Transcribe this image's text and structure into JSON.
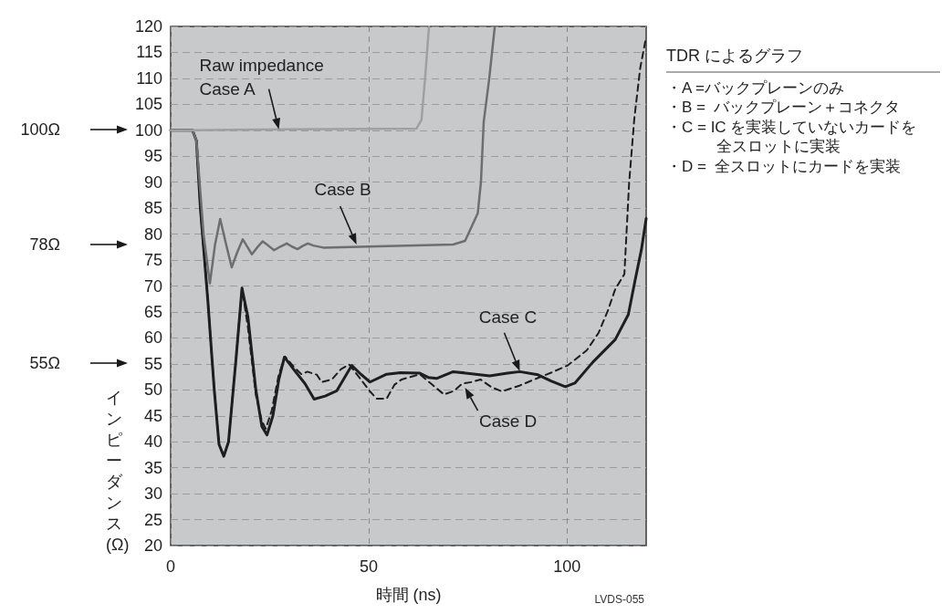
{
  "chart_data": {
    "type": "line",
    "xlabel": "時間 (ns)",
    "ylabel": "インピーダンス (Ω)",
    "xlim": [
      0,
      120
    ],
    "xticks": [
      0,
      50,
      100
    ],
    "ylim": [
      20,
      120
    ],
    "yticks": [
      20,
      25,
      30,
      35,
      40,
      45,
      50,
      55,
      60,
      65,
      70,
      75,
      80,
      85,
      90,
      95,
      100,
      105,
      110,
      115,
      120
    ],
    "grid": true,
    "marker": "none",
    "line_style": "solid",
    "series": [
      {
        "color": "#a0a0a0",
        "x": [
          0,
          6,
          30,
          62,
          63.3,
          64.2,
          65.2
        ],
        "values": [
          100,
          100,
          100.2,
          100.3,
          102,
          110,
          120
        ]
      },
      {
        "color": "#6e6e6e",
        "x": [
          0,
          5.5,
          6.5,
          8.3,
          9.9,
          11.2,
          12.5,
          14,
          15.4,
          16.8,
          18.2,
          19.4,
          20.5,
          21.8,
          23.2,
          24.6,
          26.1,
          27.7,
          29.3,
          30.6,
          32,
          33.3,
          34.6,
          36,
          38.5,
          50,
          71.3,
          74.3,
          77.5,
          78.3,
          79,
          80.4,
          81.8
        ],
        "values": [
          100,
          100,
          98,
          80,
          70.5,
          78,
          82.9,
          78,
          73.6,
          76.5,
          79,
          77.5,
          76.1,
          77.4,
          78.6,
          77.8,
          76.9,
          77.6,
          78.2,
          77.6,
          77.1,
          77.7,
          78.2,
          77.8,
          77.4,
          77.6,
          78,
          78.7,
          84,
          90,
          101.6,
          110,
          120
        ]
      },
      {
        "color": "#1e1e1e",
        "x": [
          0,
          5.5,
          6.5,
          7.5,
          9.4,
          11,
          12.2,
          13.4,
          14.6,
          16.5,
          18,
          19.5,
          21.5,
          23,
          24.3,
          25.8,
          27.3,
          28.7,
          31,
          33.9,
          36.2,
          39,
          41.9,
          45.7,
          48,
          50.3,
          54.5,
          58,
          62.9,
          65,
          67.1,
          71.3,
          76,
          80.5,
          85,
          88.1,
          92.7,
          96,
          99.6,
          102,
          106.5,
          112.2,
          115.5,
          117.2,
          118.8,
          120
        ],
        "values": [
          100,
          100,
          98,
          85,
          67,
          50,
          39.5,
          37.2,
          40,
          56,
          69.6,
          64,
          50,
          43,
          41.3,
          45,
          52,
          56.3,
          54,
          51.2,
          48.2,
          48.8,
          49.8,
          54.7,
          53,
          51.5,
          53,
          53.3,
          53.2,
          52.4,
          52.2,
          53.5,
          53.1,
          52.7,
          53.2,
          53.5,
          52.9,
          51.7,
          50.6,
          51.3,
          55.3,
          59.7,
          64.5,
          71.1,
          77,
          83
        ]
      },
      {
        "color": "#1e1e1e",
        "line_style": "dashed",
        "x": [
          0,
          5.5,
          6.5,
          7.5,
          9.4,
          11,
          12.2,
          13.4,
          14.6,
          16.5,
          18,
          19.5,
          21.5,
          23,
          24,
          25.5,
          27.3,
          28.9,
          31,
          33,
          34.5,
          36.9,
          38.1,
          40.7,
          43,
          45,
          47.5,
          50.3,
          52,
          54.5,
          56.5,
          58.3,
          62.9,
          66,
          69,
          71.5,
          73.6,
          76,
          78.2,
          81,
          83.6,
          88,
          92.7,
          96,
          100.2,
          105,
          108,
          110.3,
          112.2,
          114.5,
          115.7,
          117,
          118.5,
          120
        ],
        "values": [
          100,
          100,
          98,
          85,
          67,
          50,
          39.5,
          37.2,
          40,
          56,
          69.6,
          62,
          49,
          44,
          42.5,
          46,
          53,
          56.4,
          54.5,
          53,
          53.5,
          52.9,
          51.5,
          52,
          54,
          54.9,
          52.5,
          49.7,
          48.3,
          48.3,
          51,
          52,
          53,
          51,
          49.1,
          49.8,
          51.2,
          51.5,
          52,
          50.5,
          49.7,
          50.8,
          52.3,
          53.3,
          54.7,
          57.6,
          61,
          65.2,
          69.4,
          72.3,
          89.9,
          102.2,
          112,
          118
        ]
      }
    ],
    "annotations": [
      {
        "text": "Raw impedance\nCase A",
        "x": 27.3,
        "y": 100.2
      },
      {
        "text": "Case B",
        "x": 46.9,
        "y": 78
      },
      {
        "text": "Case C",
        "x": 88.1,
        "y": 53.6
      },
      {
        "text": "Case D",
        "x": 74.3,
        "y": 50.4
      },
      "100Ω",
      "78Ω",
      "55Ω",
      "TDR によるグラフ",
      "・A =バックプレーンのみ",
      "・B =  バックプレーン＋コネクタ",
      "・C = IC を実装していないカードを全スロットに実装",
      "・D =  全スロットにカードを実装",
      "LVDS-055"
    ]
  }
}
